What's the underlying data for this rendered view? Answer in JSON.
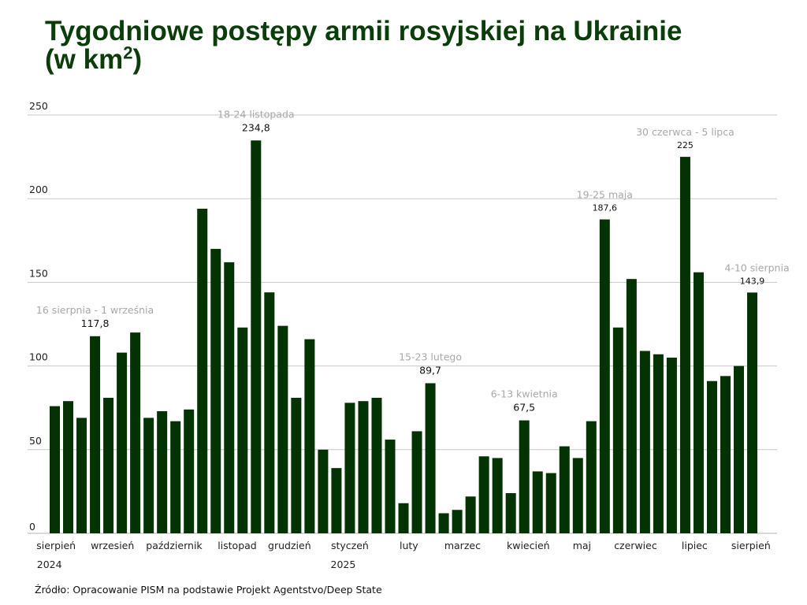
{
  "title": {
    "main": "Tygodniowe postępy armii rosyjskiej na Ukrainie",
    "unit_prefix": "(w km",
    "unit_sup": "2",
    "unit_suffix": ")"
  },
  "source": "Źródło: Opracowanie PISM na podstawie Projekt Agentstvo/Deep State",
  "colors": {
    "bar": "#033303",
    "grid": "#c8c8c8",
    "annotation": "#a8a8a8",
    "title": "#0b3d0b"
  },
  "chart_data": {
    "type": "bar",
    "title": "Tygodniowe postępy armii rosyjskiej na Ukrainie (w km2)",
    "xlabel": "",
    "ylabel": "",
    "ylim": [
      0,
      250
    ],
    "yticks": [
      0,
      50,
      100,
      150,
      200,
      250
    ],
    "grid": true,
    "values": [
      76,
      79,
      69,
      117.8,
      81,
      108,
      120,
      69,
      73,
      67,
      74,
      194,
      170,
      162,
      123,
      234.8,
      144,
      124,
      81,
      116,
      50,
      39,
      78,
      79,
      81,
      56,
      18,
      61,
      89.7,
      12,
      14,
      22,
      46,
      45,
      24,
      67.5,
      37,
      36,
      52,
      45,
      67,
      187.6,
      123,
      152,
      109,
      107,
      105,
      225,
      156,
      91,
      94,
      100,
      143.9
    ],
    "month_labels": [
      {
        "label": "sierpień",
        "bar": 0.1
      },
      {
        "label": "wrzesień",
        "bar": 4.3
      },
      {
        "label": "październik",
        "bar": 8.9
      },
      {
        "label": "listopad",
        "bar": 13.6
      },
      {
        "label": "grudzień",
        "bar": 17.5
      },
      {
        "label": "styczeń",
        "bar": 22
      },
      {
        "label": "luty",
        "bar": 26.4
      },
      {
        "label": "marzec",
        "bar": 30.4
      },
      {
        "label": "kwiecień",
        "bar": 35.3
      },
      {
        "label": "maj",
        "bar": 39.3
      },
      {
        "label": "czerwiec",
        "bar": 43.3
      },
      {
        "label": "lipiec",
        "bar": 47.7
      },
      {
        "label": "sierpień",
        "bar": 51.9
      }
    ],
    "year_labels": [
      {
        "label": "2024",
        "bar": -0.4
      },
      {
        "label": "2025",
        "bar": 21.5
      }
    ],
    "annotations": [
      {
        "bar": 3,
        "period": "16 sierpnia - 1 września",
        "value": "117,8"
      },
      {
        "bar": 15,
        "period": "18-24 listopada",
        "value": "234,8"
      },
      {
        "bar": 28,
        "period": "15-23 lutego",
        "value": "89,7"
      },
      {
        "bar": 35,
        "period": "6-13 kwietnia",
        "value": "67,5"
      },
      {
        "bar": 41,
        "period": "19-25 maja",
        "value": "187,6"
      },
      {
        "bar": 47,
        "period": "30 czerwca - 5 lipca",
        "value": "225"
      },
      {
        "bar": 52,
        "period": "4-10 sierpnia",
        "value": "143,9"
      }
    ]
  }
}
